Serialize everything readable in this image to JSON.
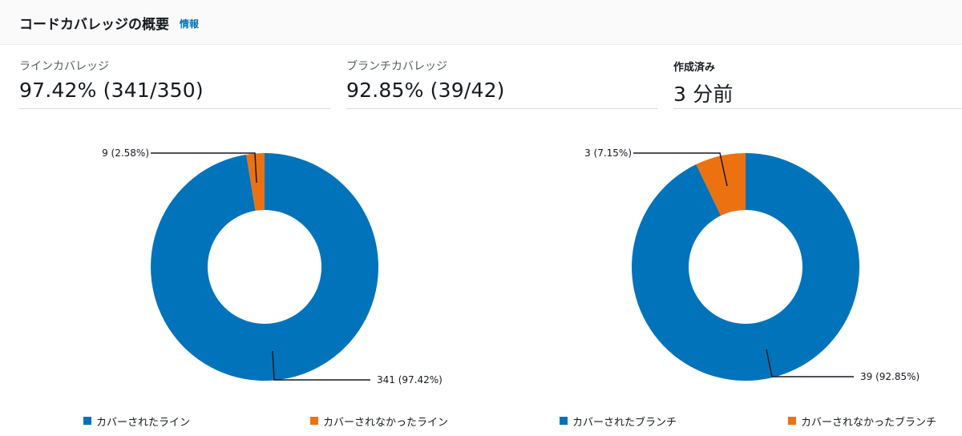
{
  "header": {
    "title": "コードカバレッジの概要",
    "info_link": "情報"
  },
  "metrics": {
    "line_coverage": {
      "label": "ラインカバレッジ",
      "value": "97.42% (341/350)"
    },
    "branch_coverage": {
      "label": "ブランチカバレッジ",
      "value": "92.85% (39/42)"
    },
    "created": {
      "label": "作成済み",
      "value": "3 分前"
    }
  },
  "colors": {
    "covered": "#0073bb",
    "uncovered": "#ec7211"
  },
  "chart_data": [
    {
      "type": "pie",
      "donut": true,
      "slices": [
        {
          "name": "カバーされたライン",
          "value": 341,
          "label": "341 (97.42%)",
          "color": "#0073bb"
        },
        {
          "name": "カバーされなかったライン",
          "value": 9,
          "label": "9 (2.58%)",
          "color": "#ec7211"
        }
      ],
      "legend": "bottom"
    },
    {
      "type": "pie",
      "donut": true,
      "slices": [
        {
          "name": "カバーされたブランチ",
          "value": 39,
          "label": "39 (92.85%)",
          "color": "#0073bb"
        },
        {
          "name": "カバーされなかったブランチ",
          "value": 3,
          "label": "3 (7.15%)",
          "color": "#ec7211"
        }
      ],
      "legend": "bottom"
    }
  ]
}
